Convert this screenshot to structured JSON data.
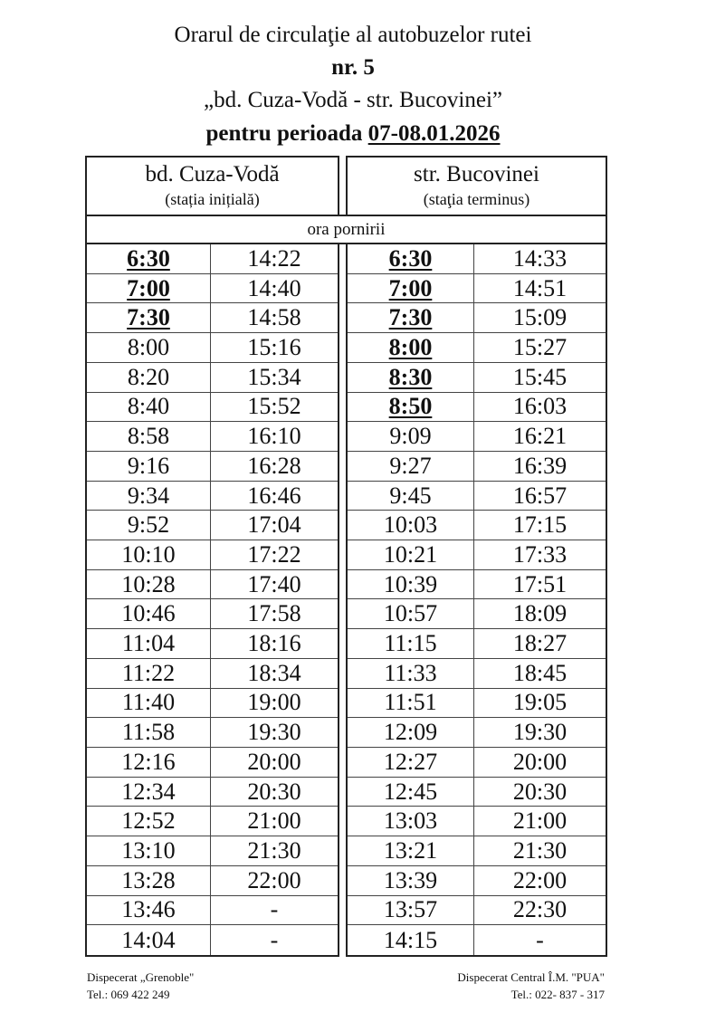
{
  "header": {
    "line1": "Orarul de circulaţie al autobuzelor rutei",
    "line2": "nr. 5",
    "line3": "„bd. Cuza-Vodă - str. Bucovinei”",
    "line4_prefix": "pentru perioada ",
    "line4_period": "07-08.01.2026"
  },
  "stations": {
    "left": {
      "name": "bd. Cuza-Vodă",
      "note": "(stația inițială)"
    },
    "right": {
      "name": "str. Bucovinei",
      "note": "(staţia terminus)"
    }
  },
  "departure_label": "ora pornirii",
  "schedule": {
    "left": {
      "col1": [
        "6:30",
        "7:00",
        "7:30",
        "8:00",
        "8:20",
        "8:40",
        "8:58",
        "9:16",
        "9:34",
        "9:52",
        "10:10",
        "10:28",
        "10:46",
        "11:04",
        "11:22",
        "11:40",
        "11:58",
        "12:16",
        "12:34",
        "12:52",
        "13:10",
        "13:28",
        "13:46",
        "14:04"
      ],
      "col2": [
        "14:22",
        "14:40",
        "14:58",
        "15:16",
        "15:34",
        "15:52",
        "16:10",
        "16:28",
        "16:46",
        "17:04",
        "17:22",
        "17:40",
        "17:58",
        "18:16",
        "18:34",
        "19:00",
        "19:30",
        "20:00",
        "20:30",
        "21:00",
        "21:30",
        "22:00",
        "-",
        "-"
      ],
      "emphasized_col1": [
        "6:30",
        "7:00",
        "7:30"
      ]
    },
    "right": {
      "col1": [
        "6:30",
        "7:00",
        "7:30",
        "8:00",
        "8:30",
        "8:50",
        "9:09",
        "9:27",
        "9:45",
        "10:03",
        "10:21",
        "10:39",
        "10:57",
        "11:15",
        "11:33",
        "11:51",
        "12:09",
        "12:27",
        "12:45",
        "13:03",
        "13:21",
        "13:39",
        "13:57",
        "14:15"
      ],
      "col2": [
        "14:33",
        "14:51",
        "15:09",
        "15:27",
        "15:45",
        "16:03",
        "16:21",
        "16:39",
        "16:57",
        "17:15",
        "17:33",
        "17:51",
        "18:09",
        "18:27",
        "18:45",
        "19:05",
        "19:30",
        "20:00",
        "20:30",
        "21:00",
        "21:30",
        "22:00",
        "22:30",
        "-"
      ],
      "emphasized_col1": [
        "6:30",
        "7:00",
        "7:30",
        "8:00",
        "8:30",
        "8:50"
      ]
    }
  },
  "footer": {
    "left": {
      "name": "Dispecerat „Grenoble\"",
      "phone": "Tel.: 069 422 249"
    },
    "right": {
      "name": "Dispecerat Central Î.M. \"PUA\"",
      "phone": "Tel.: 022- 837 - 317"
    }
  }
}
